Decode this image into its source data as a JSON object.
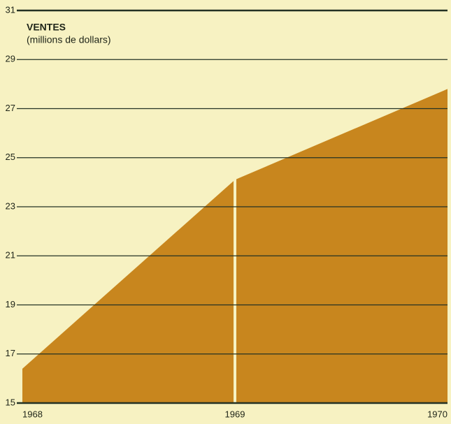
{
  "chart_data": {
    "type": "area",
    "title": "VENTES",
    "subtitle": "(millions de dollars)",
    "x": [
      1968,
      1969,
      1970
    ],
    "xticks": [
      1968,
      1969,
      1970
    ],
    "xlim": [
      1968,
      1970
    ],
    "values": [
      16.4,
      24.1,
      27.8
    ],
    "color": "#c8861e",
    "ylim": [
      15,
      31
    ],
    "yticks": [
      15,
      17,
      19,
      21,
      23,
      25,
      27,
      29,
      31
    ],
    "grid": true
  }
}
